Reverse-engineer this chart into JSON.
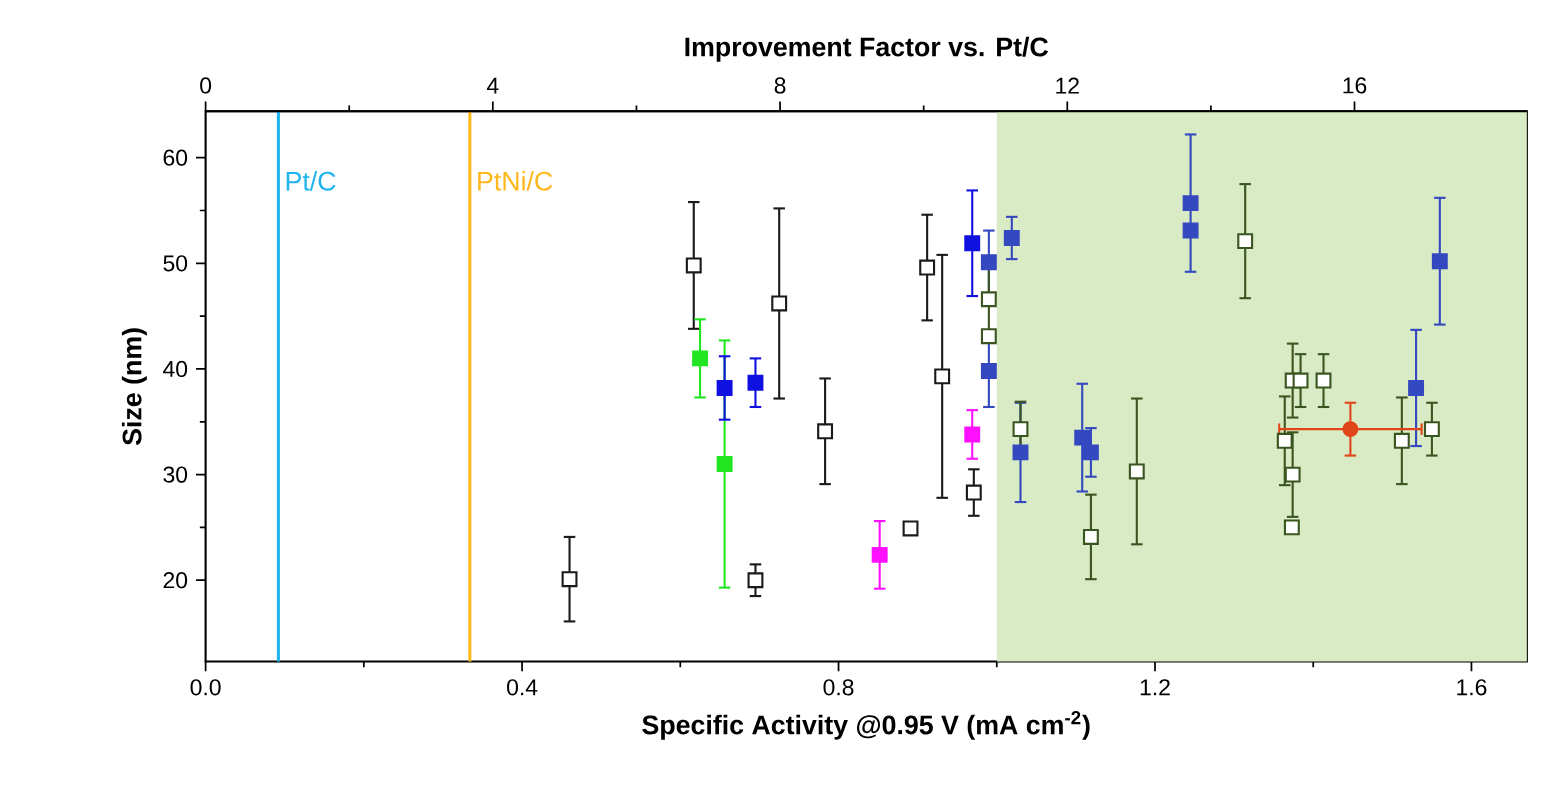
{
  "chart_data": {
    "type": "scatter",
    "xlabel": "Specific Activity @0.95 V (mA cm$^{-2}$)",
    "ylabel": "Size (nm)",
    "x2label": "Improvement Factor vs. Pt/C",
    "xlim": [
      0,
      1.67
    ],
    "xticks": [
      {
        "value": 0,
        "label": "0.0"
      },
      0.4,
      0.8,
      1.2,
      1.6
    ],
    "x2lim": [
      0,
      18.4
    ],
    "x2ticks": [
      0,
      4,
      8,
      12,
      16
    ],
    "ylim": [
      12.3,
      64.4
    ],
    "yticks": [
      20,
      30,
      40,
      50,
      60
    ],
    "ref_lines": [
      {
        "axis": "x",
        "value": 0.092,
        "label": "Pt/C",
        "color": "#1fb4ee"
      },
      {
        "axis": "x",
        "value": 0.334,
        "label": "PtNi/C",
        "color": "#ffb81c"
      }
    ],
    "bands": [
      {
        "axis": "x",
        "from": 1.0,
        "to": 1.67,
        "color": "#d9ebc4"
      }
    ],
    "series": [
      {
        "color": "#1a1a1a",
        "x": [
          0.46,
          0.617,
          0.695,
          0.725,
          0.783,
          0.891,
          0.912,
          0.931,
          0.971
        ],
        "values": [
          20.1,
          49.8,
          20.0,
          46.2,
          34.1,
          24.9,
          49.6,
          39.3,
          28.3
        ],
        "errors": [
          4,
          6,
          1.5,
          9,
          5,
          0.6,
          5,
          11.5,
          2.2
        ]
      },
      {
        "color": "#22e622",
        "marker": "square",
        "x": [
          0.625,
          0.656
        ],
        "values": [
          41.0,
          31.0
        ],
        "errors": [
          3.7,
          11.7
        ]
      },
      {
        "color": "#1010e0",
        "marker": "square",
        "x": [
          0.656,
          0.695,
          0.969
        ],
        "values": [
          38.2,
          38.7,
          51.9
        ],
        "errors": [
          3,
          2.3,
          5
        ]
      },
      {
        "color": "#ff10ff",
        "marker": "square",
        "x": [
          0.852,
          0.969
        ],
        "values": [
          22.4,
          33.8
        ],
        "errors": [
          3.2,
          2.3
        ]
      },
      {
        "color": "#3448c0",
        "marker": "square",
        "x": [
          0.99,
          0.99,
          1.019,
          1.03,
          1.108,
          1.119,
          1.245,
          1.245,
          1.53,
          1.56
        ],
        "values": [
          50.1,
          39.8,
          52.4,
          32.1,
          33.5,
          32.1,
          55.7,
          53.1,
          38.2,
          50.2
        ],
        "errors": [
          3,
          3.4,
          2,
          4.7,
          5.1,
          2.3,
          6.5,
          null,
          5.5,
          6
        ]
      },
      {
        "color": "#3b5520",
        "x": [
          0.99,
          0.99,
          1.03,
          1.119,
          1.177,
          1.314,
          1.364,
          1.374,
          1.373,
          1.374,
          1.384,
          1.413,
          1.512,
          1.55
        ],
        "values": [
          46.6,
          43.1,
          34.3,
          24.1,
          30.3,
          52.1,
          33.2,
          30.0,
          25.0,
          38.9,
          38.9,
          38.9,
          33.2,
          34.3
        ],
        "errors": [
          3,
          null,
          2.6,
          4,
          6.9,
          5.4,
          4.2,
          4,
          0.5,
          3.5,
          2.5,
          2.5,
          4.1,
          2.5
        ]
      },
      {
        "color": "#e0461a",
        "marker": "circle",
        "x": [
          1.447
        ],
        "values": [
          34.3
        ],
        "errors": [
          2.5
        ],
        "xerrors": [
          0.09
        ]
      }
    ]
  }
}
